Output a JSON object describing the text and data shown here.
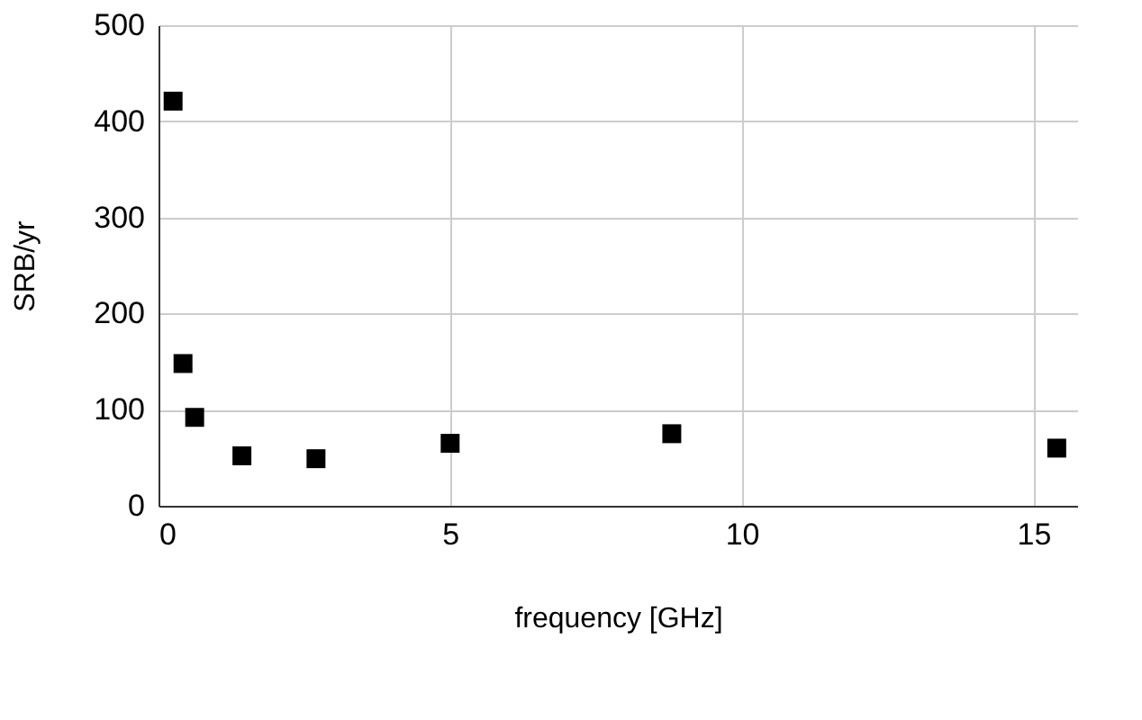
{
  "chart_data": {
    "type": "scatter",
    "xlabel": "frequency [GHz]",
    "ylabel": "SRB/yr",
    "x": [
      0.25,
      0.42,
      0.62,
      1.43,
      2.7,
      5.0,
      8.8,
      15.4
    ],
    "series": [
      {
        "color": "#000000",
        "values": [
          421,
          148,
          92,
          52,
          49,
          65,
          75,
          60
        ]
      }
    ],
    "xlim": [
      0,
      15.75
    ],
    "xticks": [
      0,
      5,
      10,
      15
    ],
    "ylim": [
      0,
      500
    ],
    "yticks": [
      0,
      100,
      200,
      300,
      400,
      500
    ],
    "grid": true,
    "marker": "square"
  }
}
